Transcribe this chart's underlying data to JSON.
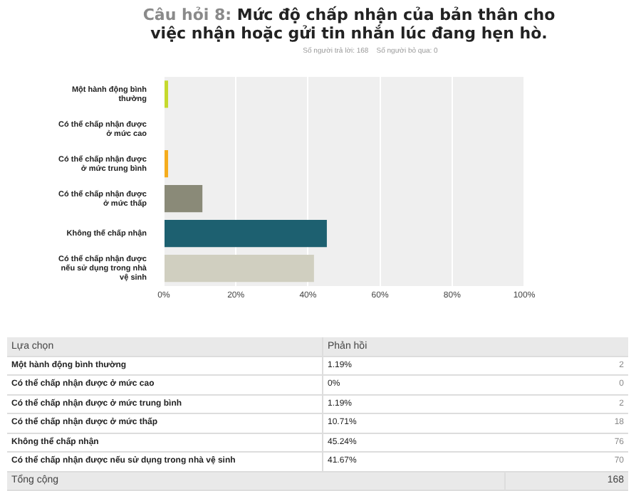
{
  "chart_data": {
    "type": "bar",
    "orientation": "horizontal",
    "title": "Câu hỏi 8: Mức độ chấp nhận của bản thân cho việc nhận hoặc gửi tin nhắn lúc đang hẹn hò.",
    "subtitle": "Số người trả lời: 168    Số người bỏ qua: 0",
    "categories": [
      "Một hành động bình thường",
      "Có thể chấp nhận được ở mức cao",
      "Có thể chấp nhận được ở mức trung bình",
      "Có thể chấp nhận được ở mức thấp",
      "Không thể chấp nhận",
      "Có thể chấp nhận được nếu sử dụng trong nhà vệ sinh"
    ],
    "values": [
      1.19,
      0,
      1.19,
      10.71,
      45.24,
      41.67
    ],
    "colors": [
      "#c5d92d",
      "#5b9bd5",
      "#f5ac1d",
      "#8a8a78",
      "#1d6070",
      "#d0cfc0"
    ],
    "xlim": [
      0,
      100
    ],
    "xticks": [
      {
        "value": 0,
        "label": "0%"
      },
      {
        "value": 20,
        "label": "20%"
      },
      {
        "value": 40,
        "label": "40%"
      },
      {
        "value": 60,
        "label": "60%"
      },
      {
        "value": 80,
        "label": "80%"
      },
      {
        "value": 100,
        "label": "100%"
      }
    ],
    "grid": "x",
    "legend": false,
    "annotations": [
      "Lựa chọn",
      "Phản hồi",
      "1.19%",
      "2",
      "0%",
      "0",
      "1.19%",
      "2",
      "10.71%",
      "18",
      "45.24%",
      "76",
      "41.67%",
      "70",
      "Tổng cộng",
      "168"
    ]
  }
}
